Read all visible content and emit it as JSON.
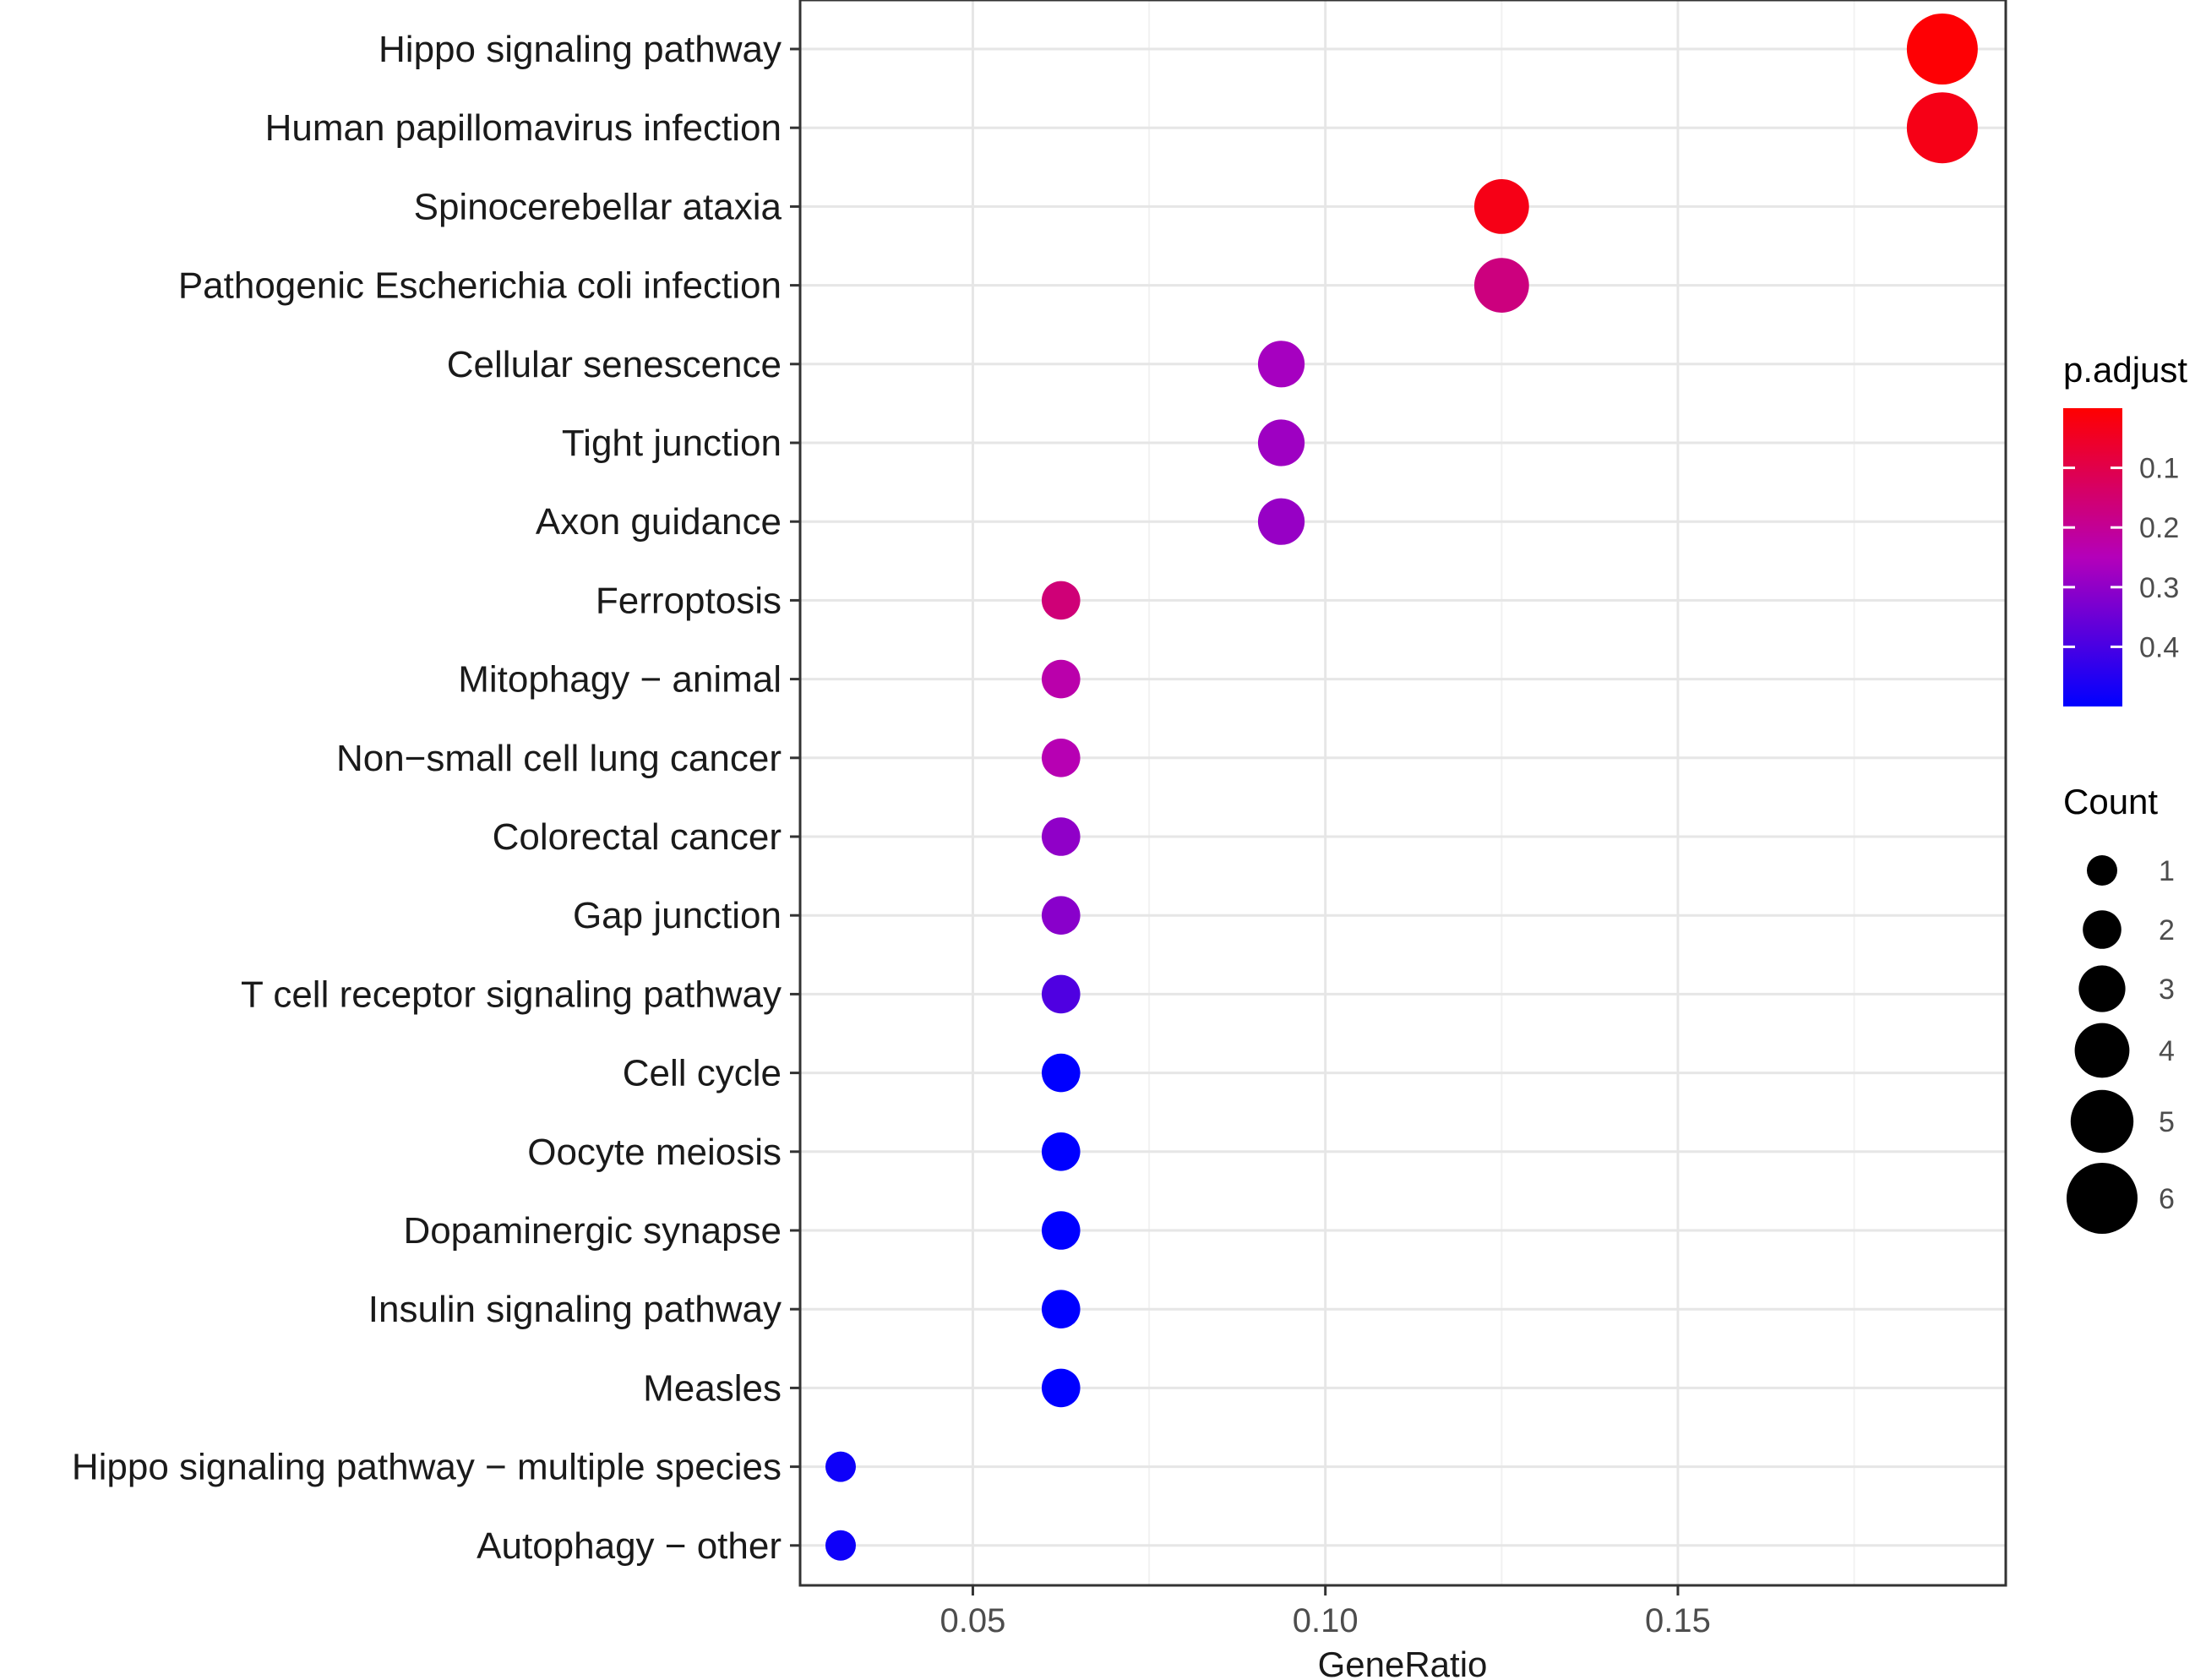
{
  "chart_data": {
    "type": "scatter",
    "subtype": "dotplot",
    "title": "",
    "xlabel": "GeneRatio",
    "ylabel": "",
    "xlim": [
      0.0255,
      0.1965
    ],
    "x_ticks": [
      0.05,
      0.1,
      0.15
    ],
    "x_tick_labels": [
      "0.05",
      "0.10",
      "0.15"
    ],
    "grid": true,
    "categories": [
      "Hippo signaling pathway",
      "Human papillomavirus infection",
      "Spinocerebellar ataxia",
      "Pathogenic Escherichia coli infection",
      "Cellular senescence",
      "Tight junction",
      "Axon guidance",
      "Ferroptosis",
      "Mitophagy − animal",
      "Non−small cell lung cancer",
      "Colorectal cancer",
      "Gap junction",
      "T cell receptor signaling pathway",
      "Cell cycle",
      "Oocyte meiosis",
      "Dopaminergic synapse",
      "Insulin signaling pathway",
      "Measles",
      "Hippo signaling pathway − multiple species",
      "Autophagy − other"
    ],
    "gene_ratio": [
      0.1875,
      0.1875,
      0.125,
      0.125,
      0.09375,
      0.09375,
      0.09375,
      0.0625,
      0.0625,
      0.0625,
      0.0625,
      0.0625,
      0.0625,
      0.0625,
      0.0625,
      0.0625,
      0.0625,
      0.0625,
      0.03125,
      0.03125
    ],
    "count": [
      6,
      6,
      4,
      4,
      3,
      3,
      3,
      2,
      2,
      2,
      2,
      2,
      2,
      2,
      2,
      2,
      2,
      2,
      1,
      1
    ],
    "p_adjust": [
      0.005,
      0.03,
      0.03,
      0.17,
      0.27,
      0.28,
      0.29,
      0.16,
      0.23,
      0.24,
      0.3,
      0.31,
      0.39,
      0.5,
      0.5,
      0.5,
      0.5,
      0.5,
      0.48,
      0.48
    ],
    "color_legend": {
      "title": "p.adjust",
      "range": [
        0.0,
        0.5
      ],
      "ticks": [
        0.1,
        0.2,
        0.3,
        0.4
      ],
      "tick_labels": [
        "0.1",
        "0.2",
        "0.3",
        "0.4"
      ],
      "low_color": "#ff0000",
      "high_color": "#0000ff"
    },
    "size_legend": {
      "title": "Count",
      "values": [
        1,
        2,
        3,
        4,
        5,
        6
      ],
      "labels": [
        "1",
        "2",
        "3",
        "4",
        "5",
        "6"
      ]
    }
  }
}
